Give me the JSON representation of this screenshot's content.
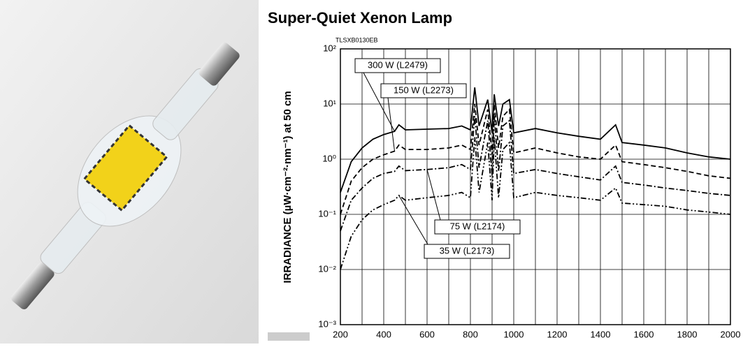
{
  "chart_data": {
    "type": "line",
    "title": "Super-Quiet Xenon Lamp",
    "code": "TLSXB0130EB",
    "ylabel": "IRRADIANCE (µW·cm⁻²·nm⁻¹) at 50 cm",
    "log_y": true,
    "grid": true,
    "color": "#000000",
    "xlim": [
      200,
      2000
    ],
    "xticks": [
      200,
      400,
      600,
      800,
      1000,
      1200,
      1400,
      1600,
      1800,
      2000
    ],
    "ylim": [
      0.001,
      100
    ],
    "yticks": [
      {
        "value": 0.001,
        "label": "10⁻³"
      },
      {
        "value": 0.01,
        "label": "10⁻²"
      },
      {
        "value": 0.1,
        "label": "10⁻¹"
      },
      {
        "value": 1,
        "label": "10⁰"
      },
      {
        "value": 10,
        "label": "10¹"
      },
      {
        "value": 100,
        "label": "10²"
      }
    ],
    "x": [
      200,
      250,
      300,
      350,
      400,
      450,
      470,
      500,
      600,
      700,
      760,
      800,
      820,
      840,
      880,
      900,
      910,
      930,
      950,
      980,
      1000,
      1100,
      1200,
      1300,
      1400,
      1470,
      1500,
      1600,
      1700,
      1800,
      1900,
      2000
    ],
    "series": [
      {
        "name": "300 W (L2479)",
        "linestyle": "solid",
        "values": [
          0.25,
          0.9,
          1.6,
          2.3,
          2.8,
          3.2,
          4.2,
          3.4,
          3.5,
          3.6,
          4.0,
          3.4,
          20,
          4,
          12,
          3,
          15,
          4,
          10,
          12,
          3,
          3.6,
          3.0,
          2.6,
          2.3,
          4.2,
          2.0,
          1.8,
          1.6,
          1.3,
          1.1,
          1.0
        ]
      },
      {
        "name": "150 W (L2273)",
        "linestyle": "dashed",
        "values": [
          0.1,
          0.4,
          0.7,
          1.0,
          1.2,
          1.4,
          1.8,
          1.5,
          1.5,
          1.6,
          1.8,
          1.5,
          10,
          1.8,
          8,
          1.2,
          10,
          1.6,
          6,
          8,
          1.3,
          1.6,
          1.3,
          1.1,
          1.0,
          1.8,
          0.9,
          0.8,
          0.7,
          0.6,
          0.5,
          0.45
        ]
      },
      {
        "name": "75 W (L2174)",
        "linestyle": "dashdot",
        "values": [
          0.05,
          0.18,
          0.3,
          0.45,
          0.55,
          0.6,
          0.75,
          0.62,
          0.65,
          0.7,
          0.8,
          0.65,
          6,
          0.7,
          5,
          0.5,
          6,
          0.6,
          4,
          5,
          0.55,
          0.65,
          0.55,
          0.48,
          0.42,
          0.75,
          0.38,
          0.34,
          0.3,
          0.27,
          0.24,
          0.22
        ]
      },
      {
        "name": "35 W (L2173)",
        "linestyle": "dashdotdot",
        "values": [
          0.01,
          0.04,
          0.08,
          0.12,
          0.15,
          0.18,
          0.22,
          0.18,
          0.2,
          0.22,
          0.25,
          0.2,
          2.5,
          0.25,
          2,
          0.18,
          2.5,
          0.2,
          1.5,
          2,
          0.2,
          0.25,
          0.22,
          0.2,
          0.18,
          0.3,
          0.16,
          0.15,
          0.14,
          0.12,
          0.11,
          0.1
        ]
      }
    ]
  }
}
